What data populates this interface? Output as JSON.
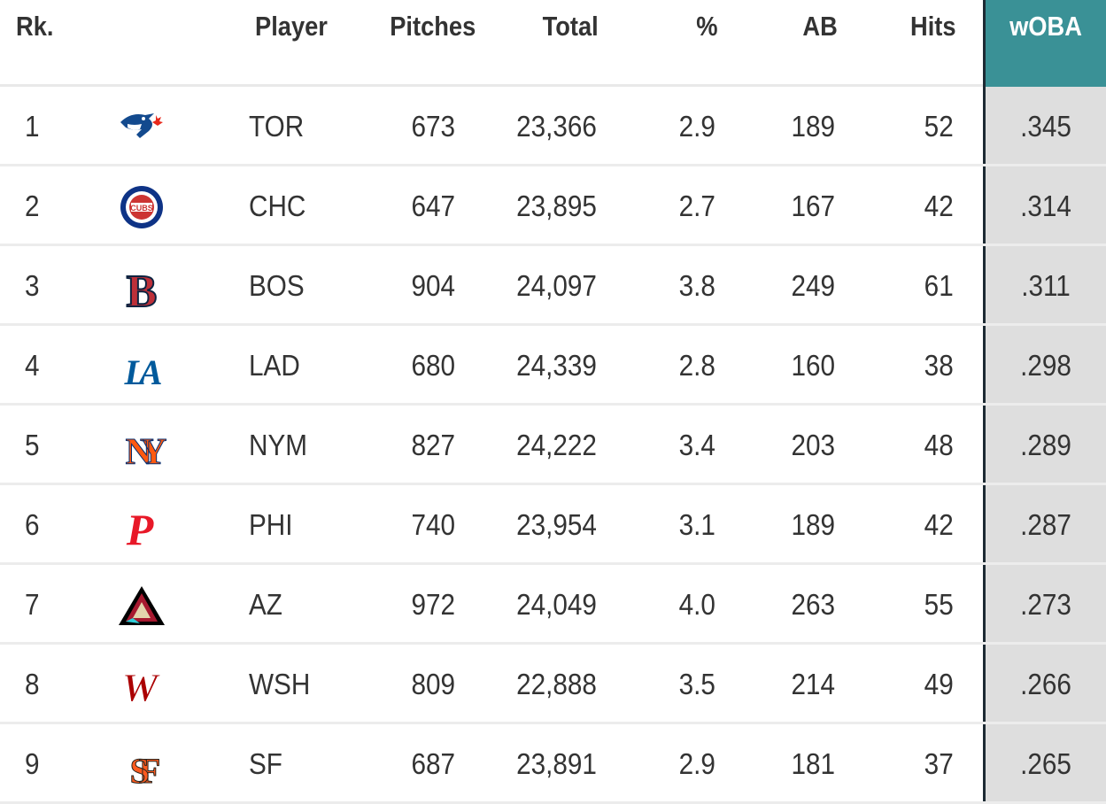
{
  "header": {
    "rank": "Rk.",
    "player": "Player",
    "pitches": "Pitches",
    "total": "Total",
    "pct": "%",
    "ab": "AB",
    "hits": "Hits",
    "woba": "wOBA"
  },
  "rows": [
    {
      "rank": "1",
      "team": "TOR",
      "pitches": "673",
      "total": "23,366",
      "pct": "2.9",
      "ab": "189",
      "hits": "52",
      "woba": ".345",
      "logo": "blue-jays-logo-icon"
    },
    {
      "rank": "2",
      "team": "CHC",
      "pitches": "647",
      "total": "23,895",
      "pct": "2.7",
      "ab": "167",
      "hits": "42",
      "woba": ".314",
      "logo": "cubs-logo-icon",
      "logo_text": "CUBS"
    },
    {
      "rank": "3",
      "team": "BOS",
      "pitches": "904",
      "total": "24,097",
      "pct": "3.8",
      "ab": "249",
      "hits": "61",
      "woba": ".311",
      "logo": "red-sox-logo-icon",
      "logo_text": "B"
    },
    {
      "rank": "4",
      "team": "LAD",
      "pitches": "680",
      "total": "24,339",
      "pct": "2.8",
      "ab": "160",
      "hits": "38",
      "woba": ".298",
      "logo": "dodgers-logo-icon",
      "logo_text": "LA"
    },
    {
      "rank": "5",
      "team": "NYM",
      "pitches": "827",
      "total": "24,222",
      "pct": "3.4",
      "ab": "203",
      "hits": "48",
      "woba": ".289",
      "logo": "mets-logo-icon",
      "logo_text": "NY"
    },
    {
      "rank": "6",
      "team": "PHI",
      "pitches": "740",
      "total": "23,954",
      "pct": "3.1",
      "ab": "189",
      "hits": "42",
      "woba": ".287",
      "logo": "phillies-logo-icon",
      "logo_text": "P"
    },
    {
      "rank": "7",
      "team": "AZ",
      "pitches": "972",
      "total": "24,049",
      "pct": "4.0",
      "ab": "263",
      "hits": "55",
      "woba": ".273",
      "logo": "diamondbacks-logo-icon",
      "logo_text": "A"
    },
    {
      "rank": "8",
      "team": "WSH",
      "pitches": "809",
      "total": "22,888",
      "pct": "3.5",
      "ab": "214",
      "hits": "49",
      "woba": ".266",
      "logo": "nationals-logo-icon",
      "logo_text": "W"
    },
    {
      "rank": "9",
      "team": "SF",
      "pitches": "687",
      "total": "23,891",
      "pct": "2.9",
      "ab": "181",
      "hits": "37",
      "woba": ".265",
      "logo": "giants-logo-icon",
      "logo_text": "SF"
    }
  ],
  "colors": {
    "woba_header_bg": "#3a9196",
    "woba_cell_bg": "#dedede",
    "woba_border": "#1d2a33",
    "row_divider": "#ececec"
  }
}
